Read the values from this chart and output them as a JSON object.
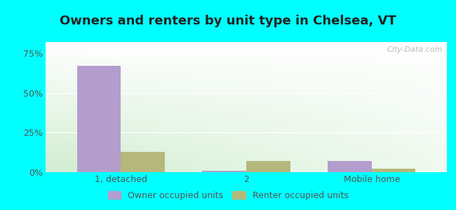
{
  "title": "Owners and renters by unit type in Chelsea, VT",
  "categories": [
    "1, detached",
    "2",
    "Mobile home"
  ],
  "owner_values": [
    67.0,
    1.0,
    7.0
  ],
  "renter_values": [
    13.0,
    7.0,
    2.0
  ],
  "owner_color": "#b39dcc",
  "renter_color": "#b5b87a",
  "yticks": [
    0,
    25,
    50,
    75
  ],
  "yticklabels": [
    "0%",
    "25%",
    "50%",
    "75%"
  ],
  "ylim": [
    0,
    82
  ],
  "bar_width": 0.35,
  "title_fontsize": 13,
  "tick_fontsize": 9,
  "legend_fontsize": 9,
  "watermark": "City-Data.com",
  "outer_bg": "#00ffff",
  "grad_topleft": [
    1.0,
    1.0,
    1.0
  ],
  "grad_topright": [
    1.0,
    1.0,
    1.0
  ],
  "grad_bottomleft": [
    0.82,
    0.93,
    0.82
  ],
  "grad_bottomright": [
    0.94,
    0.98,
    0.94
  ]
}
